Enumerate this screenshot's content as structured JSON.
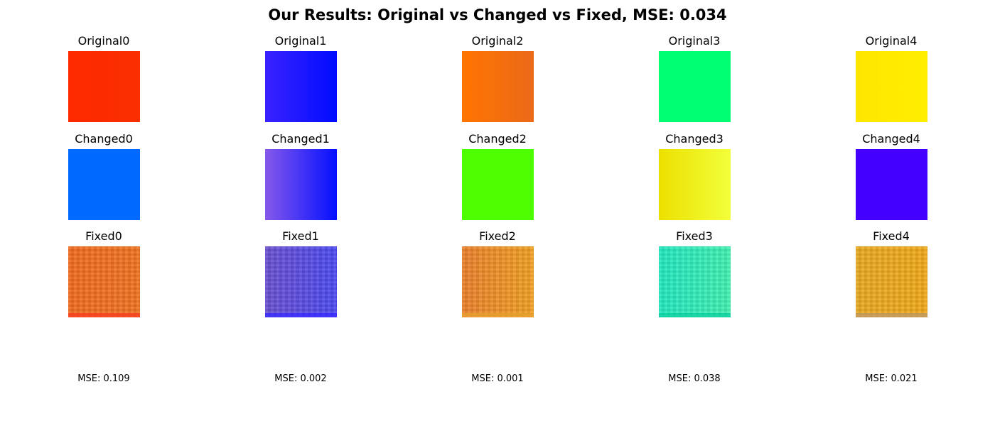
{
  "title": "Our Results: Original vs Changed vs Fixed, MSE: 0.034",
  "columns": [
    {
      "original": {
        "label": "Original0",
        "color_left": "#ff2a00",
        "color_right": "#f92f00"
      },
      "changed": {
        "label": "Changed0",
        "color_left": "#0069ff",
        "color_right": "#0069ff"
      },
      "fixed": {
        "label": "Fixed0",
        "color_left": "#f0691c",
        "color_right": "#ef7320",
        "edge": "#f74020"
      },
      "mse": "MSE: 0.109"
    },
    {
      "original": {
        "label": "Original1",
        "color_left": "#3a22ff",
        "color_right": "#000cff"
      },
      "changed": {
        "label": "Changed1",
        "color_left": "#8659ea",
        "color_right": "#0410ff"
      },
      "fixed": {
        "label": "Fixed1",
        "color_left": "#6a4fd0",
        "color_right": "#4a48f0",
        "edge": "#3a2cff"
      },
      "mse": "MSE: 0.002"
    },
    {
      "original": {
        "label": "Original2",
        "color_left": "#ff7400",
        "color_right": "#eb6a1a"
      },
      "changed": {
        "label": "Changed2",
        "color_left": "#4dff00",
        "color_right": "#4dff00"
      },
      "fixed": {
        "label": "Fixed2",
        "color_left": "#ea7f2a",
        "color_right": "#f0a020",
        "edge": "#e8a030"
      },
      "mse": "MSE: 0.001"
    },
    {
      "original": {
        "label": "Original3",
        "color_left": "#00ff73",
        "color_right": "#00ff73"
      },
      "changed": {
        "label": "Changed3",
        "color_left": "#ece000",
        "color_right": "#f2ff3a"
      },
      "fixed": {
        "label": "Fixed3",
        "color_left": "#20e8c0",
        "color_right": "#40f0b0",
        "edge": "#10d0a0"
      },
      "mse": "MSE: 0.038"
    },
    {
      "original": {
        "label": "Original4",
        "color_left": "#ffe600",
        "color_right": "#ffee00"
      },
      "changed": {
        "label": "Changed4",
        "color_left": "#4400ff",
        "color_right": "#4400ff"
      },
      "fixed": {
        "label": "Fixed4",
        "color_left": "#e8a820",
        "color_right": "#f0a818",
        "edge": "#c09860"
      },
      "mse": "MSE: 0.021"
    }
  ]
}
